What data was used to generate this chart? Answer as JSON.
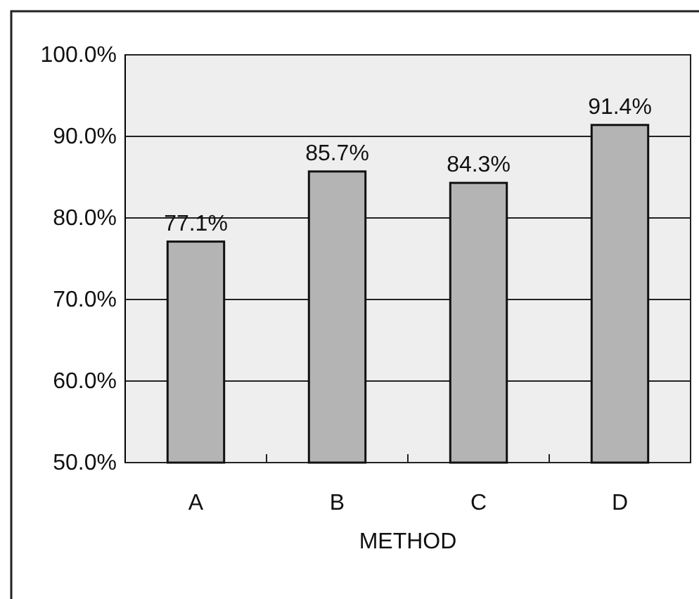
{
  "chart_data": {
    "type": "bar",
    "xlabel": "METHOD",
    "categories": [
      "A",
      "B",
      "C",
      "D"
    ],
    "values": [
      77.1,
      85.7,
      84.3,
      91.4
    ],
    "value_labels": [
      "77.1%",
      "85.7%",
      "84.3%",
      "91.4%"
    ],
    "color": "#b4b4b4",
    "ylim": [
      50,
      100
    ],
    "yticks": [
      {
        "value": 50,
        "label": "50.0%"
      },
      {
        "value": 60,
        "label": "60.0%"
      },
      {
        "value": 70,
        "label": "70.0%"
      },
      {
        "value": 80,
        "label": "80.0%"
      },
      {
        "value": 90,
        "label": "90.0%"
      },
      {
        "value": 100,
        "label": "100.0%"
      }
    ],
    "grid": "y"
  }
}
